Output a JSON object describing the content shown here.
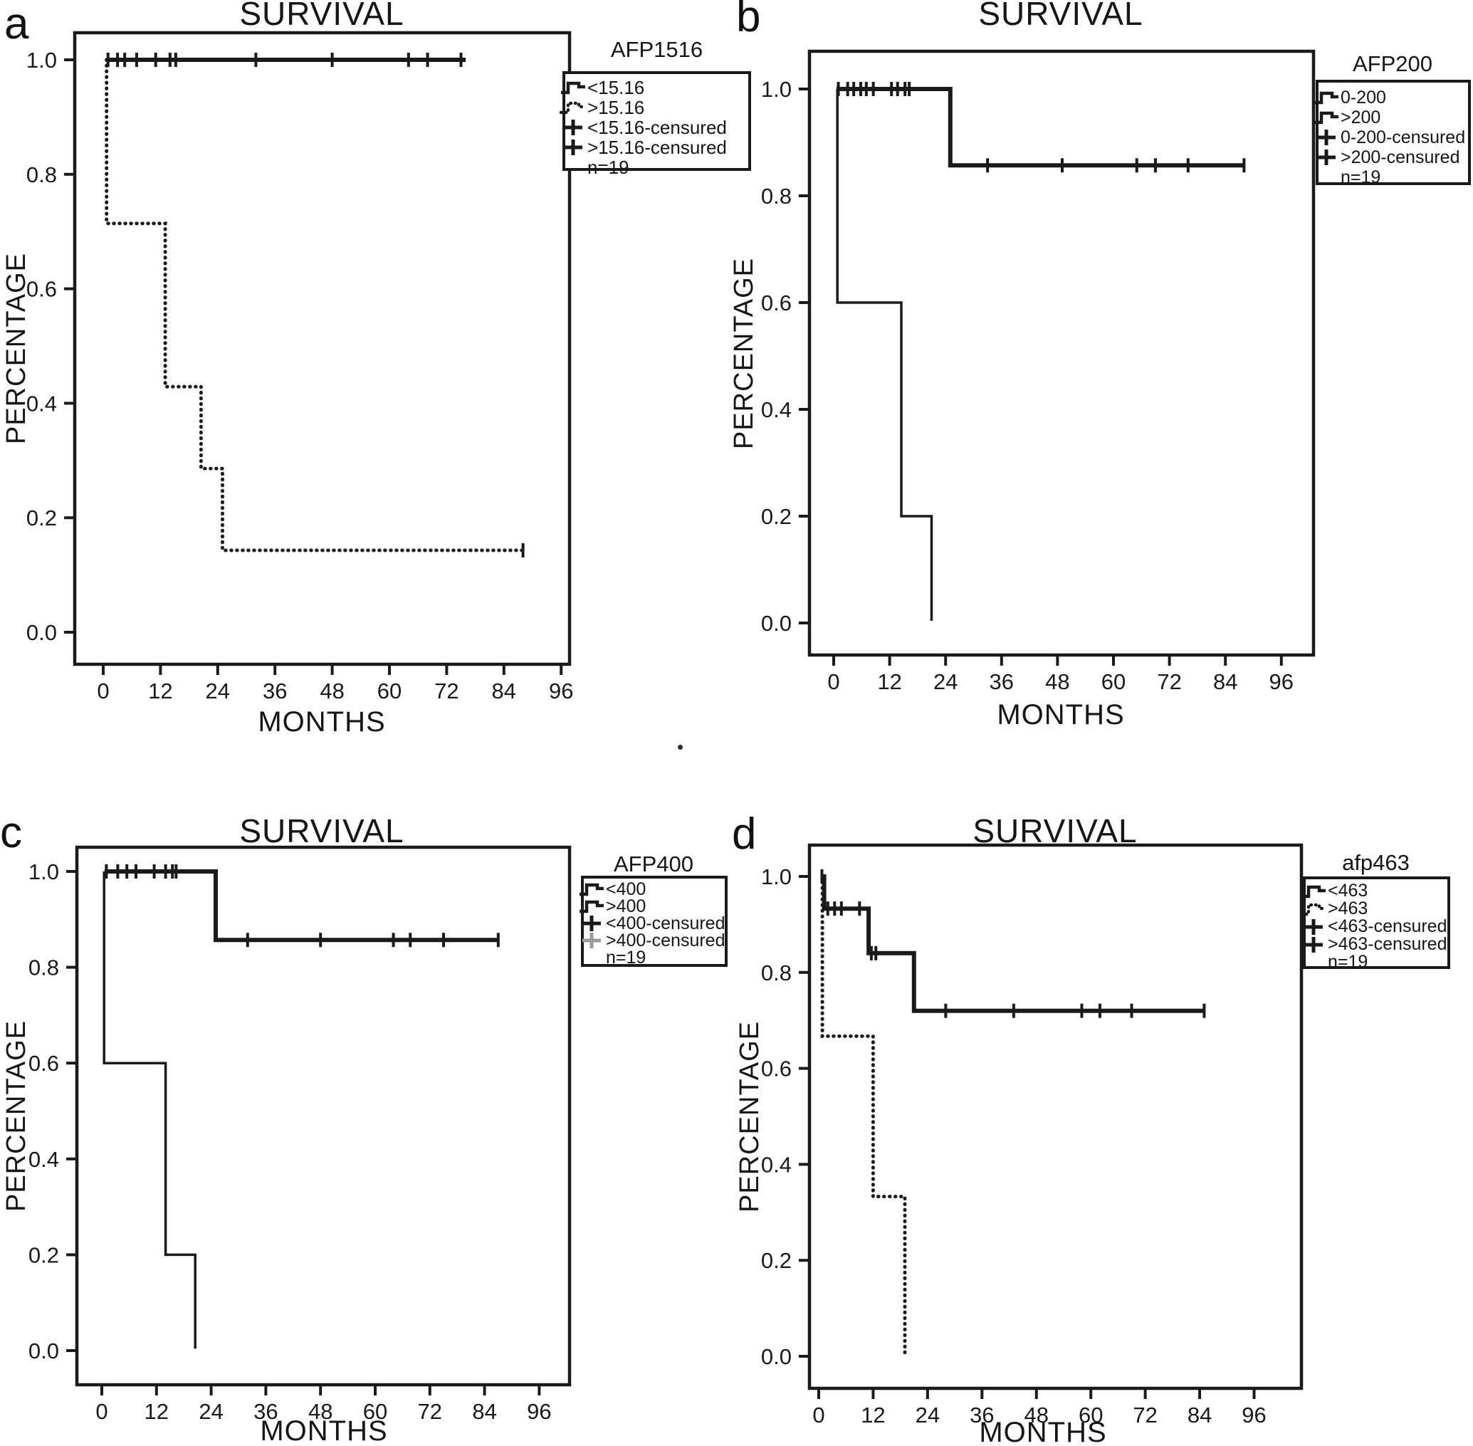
{
  "colors": {
    "line": "#1a1a1a",
    "muted": "#9a9a9a",
    "background": "#ffffff"
  },
  "chart_data": [
    {
      "panel": "a",
      "type": "line",
      "letter": "a",
      "title": "SURVIVAL",
      "xlabel": "MONTHS",
      "ylabel": "PERCENTAGE",
      "x_ticks": [
        0,
        12,
        24,
        36,
        48,
        60,
        72,
        84,
        96
      ],
      "y_ticks": [
        "1.0",
        "0.8",
        "0.6",
        "0.4",
        "0.2",
        "0.0"
      ],
      "xlim": [
        0,
        100
      ],
      "ylim": [
        0,
        1.07
      ],
      "grid": false,
      "legend": {
        "position": "right",
        "title": "AFP1516",
        "entries": [
          {
            "symbol": "step-solid",
            "label": "<15.16"
          },
          {
            "symbol": "step-dotted",
            "label": ">15.16"
          },
          {
            "symbol": "plus",
            "label": "<15.16-censured"
          },
          {
            "symbol": "plus",
            "label": ">15.16-censured"
          }
        ],
        "note": "n=19"
      },
      "series": [
        {
          "name": "<15.16",
          "style": "solid",
          "weight": 6,
          "steps": [
            [
              0.7,
              1.0
            ],
            [
              76,
              1.0
            ]
          ],
          "censors": [
            [
              1,
              1
            ],
            [
              3,
              1
            ],
            [
              4.5,
              1
            ],
            [
              7,
              1
            ],
            [
              11,
              1
            ],
            [
              14,
              1
            ],
            [
              15.2,
              1
            ],
            [
              32,
              1
            ],
            [
              48,
              1
            ],
            [
              64,
              1
            ],
            [
              68,
              1
            ],
            [
              75,
              1
            ]
          ]
        },
        {
          "name": ">15.16",
          "style": "dotted",
          "weight": 5,
          "steps": [
            [
              0.7,
              1.0
            ],
            [
              0.7,
              0.714
            ],
            [
              13,
              0.714
            ],
            [
              13,
              0.429
            ],
            [
              20.5,
              0.429
            ],
            [
              20.5,
              0.286
            ],
            [
              25,
              0.286
            ],
            [
              25,
              0.143
            ],
            [
              88,
              0.143
            ]
          ],
          "censors": [
            [
              88,
              0.143
            ]
          ]
        }
      ]
    },
    {
      "panel": "b",
      "type": "line",
      "letter": "b",
      "title": "SURVIVAL",
      "xlabel": "MONTHS",
      "ylabel": "PERCENTAGE",
      "x_ticks": [
        0,
        12,
        24,
        36,
        48,
        60,
        72,
        84,
        96
      ],
      "y_ticks": [
        "1.0",
        "0.8",
        "0.6",
        "0.4",
        "0.2",
        "0.0"
      ],
      "xlim": [
        0,
        100
      ],
      "ylim": [
        0,
        1.07
      ],
      "grid": false,
      "legend": {
        "position": "right",
        "title": "AFP200",
        "entries": [
          {
            "symbol": "step-solid",
            "label": "0-200"
          },
          {
            "symbol": "step-solid",
            "label": ">200"
          },
          {
            "symbol": "plus",
            "label": "0-200-censured"
          },
          {
            "symbol": "plus",
            "label": ">200-censured"
          }
        ],
        "note": "n=19"
      },
      "series": [
        {
          "name": "0-200",
          "style": "solid",
          "weight": 6,
          "steps": [
            [
              0.6,
              1.0
            ],
            [
              25,
              1.0
            ],
            [
              25,
              0.857
            ],
            [
              88,
              0.857
            ]
          ],
          "censors": [
            [
              1,
              1
            ],
            [
              3,
              1
            ],
            [
              4.3,
              1
            ],
            [
              5.8,
              1
            ],
            [
              7,
              1
            ],
            [
              8.5,
              1
            ],
            [
              12.4,
              1
            ],
            [
              13.7,
              1
            ],
            [
              15.3,
              1
            ],
            [
              16.2,
              1
            ],
            [
              33,
              0.857
            ],
            [
              49,
              0.857
            ],
            [
              65,
              0.857
            ],
            [
              69,
              0.857
            ],
            [
              76,
              0.857
            ],
            [
              88,
              0.857
            ]
          ]
        },
        {
          "name": ">200",
          "style": "solid",
          "weight": 3.5,
          "steps": [
            [
              0.8,
              1.0
            ],
            [
              0.8,
              0.6
            ],
            [
              14.5,
              0.6
            ],
            [
              14.5,
              0.2
            ],
            [
              21,
              0.2
            ],
            [
              21,
              0.004
            ]
          ],
          "censors": []
        }
      ]
    },
    {
      "panel": "c",
      "type": "line",
      "letter": "c",
      "title": "SURVIVAL",
      "xlabel": "MONTHS",
      "ylabel": "PERCENTAGE",
      "x_ticks": [
        0,
        12,
        24,
        36,
        48,
        60,
        72,
        84,
        96
      ],
      "y_ticks": [
        "1.0",
        "0.8",
        "0.6",
        "0.4",
        "0.2",
        "0.0"
      ],
      "xlim": [
        0,
        100
      ],
      "ylim": [
        0,
        1.07
      ],
      "grid": false,
      "legend": {
        "position": "right",
        "title": "AFP400",
        "entries": [
          {
            "symbol": "step-solid",
            "label": "<400"
          },
          {
            "symbol": "step-solid",
            "label": ">400"
          },
          {
            "symbol": "plus",
            "label": "<400-censured"
          },
          {
            "symbol": "plus-light",
            "label": ">400-censured"
          }
        ],
        "note": "n=19"
      },
      "series": [
        {
          "name": "<400",
          "style": "solid",
          "weight": 6,
          "steps": [
            [
              0.6,
              1.0
            ],
            [
              25,
              1.0
            ],
            [
              25,
              0.857
            ],
            [
              87,
              0.857
            ]
          ],
          "censors": [
            [
              1,
              1
            ],
            [
              3.5,
              1
            ],
            [
              5.5,
              1
            ],
            [
              7.5,
              1
            ],
            [
              11.5,
              1
            ],
            [
              14,
              1
            ],
            [
              15.5,
              1
            ],
            [
              16.3,
              1
            ],
            [
              32,
              0.857
            ],
            [
              48,
              0.857
            ],
            [
              64,
              0.857
            ],
            [
              67.7,
              0.857
            ],
            [
              75,
              0.857
            ],
            [
              87,
              0.857
            ]
          ]
        },
        {
          "name": ">400",
          "style": "solid",
          "weight": 3.5,
          "steps": [
            [
              0.5,
              1.0
            ],
            [
              0.5,
              0.6
            ],
            [
              14,
              0.6
            ],
            [
              14,
              0.2
            ],
            [
              20.5,
              0.2
            ],
            [
              20.5,
              0.004
            ]
          ],
          "censors": []
        }
      ]
    },
    {
      "panel": "d",
      "type": "line",
      "letter": "d",
      "title": "SURVIVAL",
      "xlabel": "MONTHS",
      "ylabel": "PERCENTAGE",
      "x_ticks": [
        0,
        12,
        24,
        36,
        48,
        60,
        72,
        84,
        96
      ],
      "y_ticks": [
        "1.0",
        "0.8",
        "0.6",
        "0.4",
        "0.2",
        "0.0"
      ],
      "xlim": [
        0,
        100
      ],
      "ylim": [
        0,
        1.07
      ],
      "grid": false,
      "legend": {
        "position": "right",
        "title": "afp463",
        "entries": [
          {
            "symbol": "step-solid",
            "label": "<463"
          },
          {
            "symbol": "step-dotted",
            "label": ">463"
          },
          {
            "symbol": "plus",
            "label": "<463-censured"
          },
          {
            "symbol": "plus",
            "label": ">463-censured"
          }
        ],
        "note": "n=19"
      },
      "series": [
        {
          "name": "<463",
          "style": "solid",
          "weight": 6,
          "steps": [
            [
              0.4,
              1.0
            ],
            [
              1.2,
              1.0
            ],
            [
              1.2,
              0.933
            ],
            [
              11,
              0.933
            ],
            [
              11,
              0.84
            ],
            [
              21,
              0.84
            ],
            [
              21,
              0.72
            ],
            [
              85,
              0.72
            ]
          ],
          "censors": [
            [
              0.7,
              1.0
            ],
            [
              2,
              0.933
            ],
            [
              3.5,
              0.933
            ],
            [
              5,
              0.933
            ],
            [
              9,
              0.933
            ],
            [
              11.6,
              0.84
            ],
            [
              12.6,
              0.84
            ],
            [
              28,
              0.72
            ],
            [
              43,
              0.72
            ],
            [
              58,
              0.72
            ],
            [
              62,
              0.72
            ],
            [
              69,
              0.72
            ],
            [
              85,
              0.72
            ]
          ]
        },
        {
          "name": ">463",
          "style": "dotted",
          "weight": 5,
          "steps": [
            [
              0.8,
              1.0
            ],
            [
              0.8,
              0.667
            ],
            [
              12,
              0.667
            ],
            [
              12,
              0.333
            ],
            [
              19,
              0.333
            ],
            [
              19,
              0.004
            ]
          ],
          "censors": []
        }
      ]
    }
  ]
}
